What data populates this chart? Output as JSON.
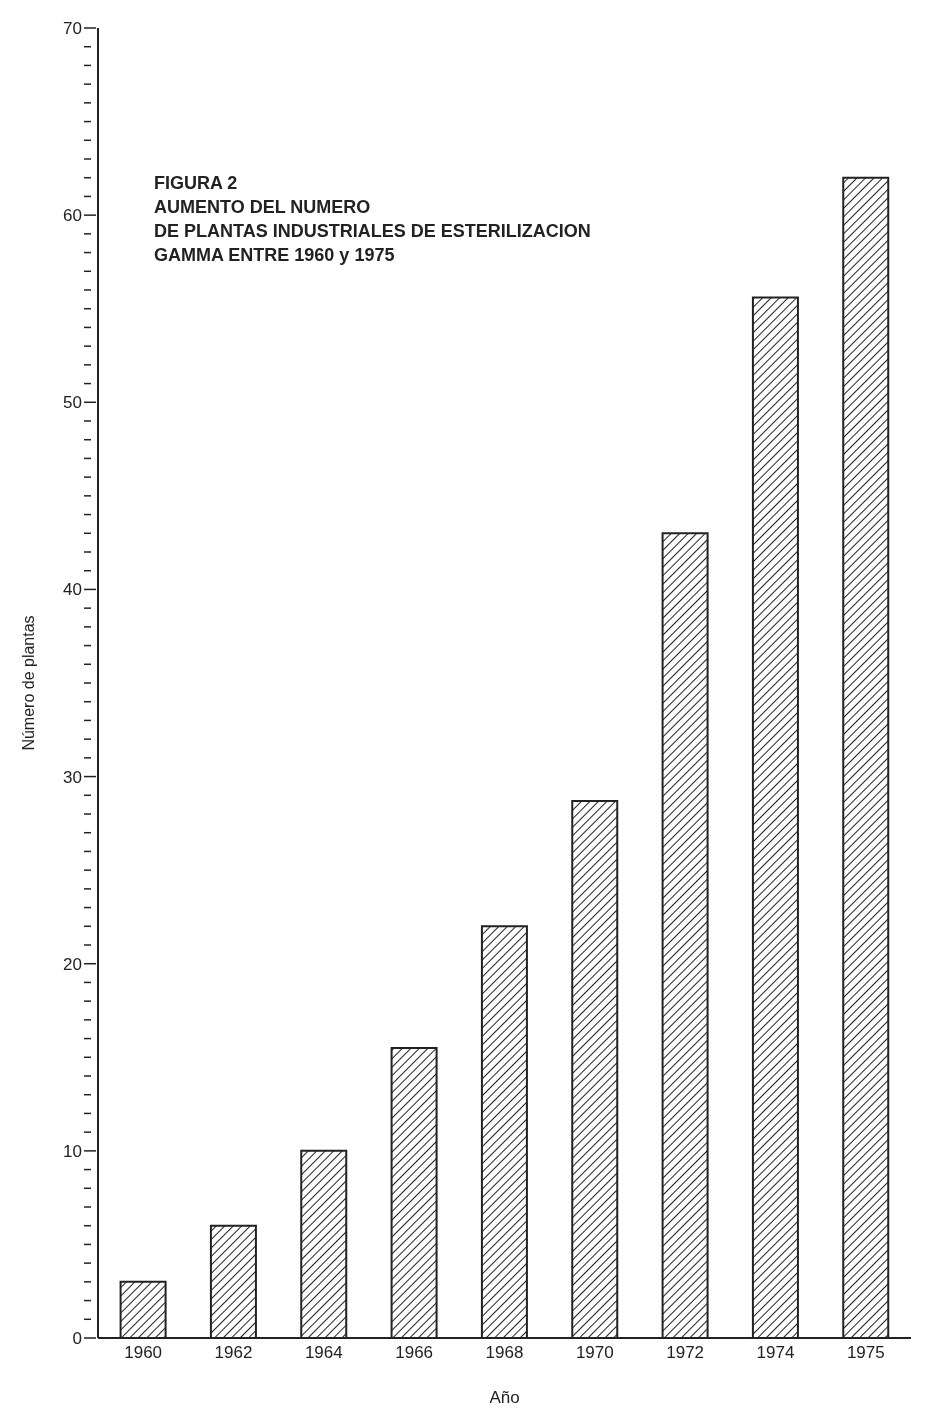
{
  "chart_data": {
    "type": "bar",
    "title": "FIGURA 2\nAUMENTO DEL NUMERO\nDE PLANTAS INDUSTRIALES DE ESTERILIZACION\nGAMMA ENTRE 1960 y 1975",
    "xlabel": "Año",
    "ylabel": "Número de plantas",
    "categories": [
      "1960",
      "1962",
      "1964",
      "1966",
      "1968",
      "1970",
      "1972",
      "1974",
      "1975"
    ],
    "values": [
      3,
      6,
      10,
      15.5,
      22,
      28.7,
      43,
      55.6,
      62
    ],
    "color": "#222222",
    "ylim": [
      0,
      70
    ],
    "yticks": [
      0,
      {
        "value": 1,
        "label": null
      },
      {
        "value": 2,
        "label": null
      },
      {
        "value": 3,
        "label": null
      },
      {
        "value": 4,
        "label": null
      },
      {
        "value": 5,
        "label": null
      },
      {
        "value": 6,
        "label": null
      },
      {
        "value": 7,
        "label": null
      },
      {
        "value": 8,
        "label": null
      },
      {
        "value": 9,
        "label": null
      },
      10,
      {
        "value": 11,
        "label": null
      },
      {
        "value": 12,
        "label": null
      },
      {
        "value": 13,
        "label": null
      },
      {
        "value": 14,
        "label": null
      },
      {
        "value": 15,
        "label": null
      },
      {
        "value": 16,
        "label": null
      },
      {
        "value": 17,
        "label": null
      },
      {
        "value": 18,
        "label": null
      },
      {
        "value": 19,
        "label": null
      },
      20,
      {
        "value": 21,
        "label": null
      },
      {
        "value": 22,
        "label": null
      },
      {
        "value": 23,
        "label": null
      },
      {
        "value": 24,
        "label": null
      },
      {
        "value": 25,
        "label": null
      },
      {
        "value": 26,
        "label": null
      },
      {
        "value": 27,
        "label": null
      },
      {
        "value": 28,
        "label": null
      },
      {
        "value": 29,
        "label": null
      },
      30,
      {
        "value": 31,
        "label": null
      },
      {
        "value": 32,
        "label": null
      },
      {
        "value": 33,
        "label": null
      },
      {
        "value": 34,
        "label": null
      },
      {
        "value": 35,
        "label": null
      },
      {
        "value": 36,
        "label": null
      },
      {
        "value": 37,
        "label": null
      },
      {
        "value": 38,
        "label": null
      },
      {
        "value": 39,
        "label": null
      },
      40,
      {
        "value": 41,
        "label": null
      },
      {
        "value": 42,
        "label": null
      },
      {
        "value": 43,
        "label": null
      },
      {
        "value": 44,
        "label": null
      },
      {
        "value": 45,
        "label": null
      },
      {
        "value": 46,
        "label": null
      },
      {
        "value": 47,
        "label": null
      },
      {
        "value": 48,
        "label": null
      },
      {
        "value": 49,
        "label": null
      },
      50,
      {
        "value": 51,
        "label": null
      },
      {
        "value": 52,
        "label": null
      },
      {
        "value": 53,
        "label": null
      },
      {
        "value": 54,
        "label": null
      },
      {
        "value": 55,
        "label": null
      },
      {
        "value": 56,
        "label": null
      },
      {
        "value": 57,
        "label": null
      },
      {
        "value": 58,
        "label": null
      },
      {
        "value": 59,
        "label": null
      },
      60,
      {
        "value": 61,
        "label": null
      },
      {
        "value": 62,
        "label": null
      },
      {
        "value": 63,
        "label": null
      },
      {
        "value": 64,
        "label": null
      },
      {
        "value": 65,
        "label": null
      },
      {
        "value": 66,
        "label": null
      },
      {
        "value": 67,
        "label": null
      },
      {
        "value": 68,
        "label": null
      },
      {
        "value": 69,
        "label": null
      },
      70
    ],
    "grid": false,
    "legend": false
  }
}
